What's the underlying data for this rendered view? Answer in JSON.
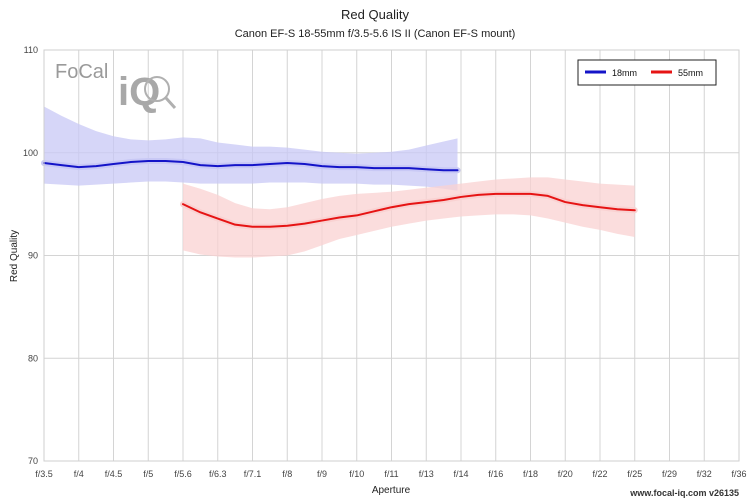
{
  "chart_data": {
    "type": "line",
    "title": "Red Quality",
    "subtitle": "Canon EF-S 18-55mm f/3.5-5.6 IS II (Canon EF-S mount)",
    "xlabel": "Aperture",
    "ylabel": "Red Quality",
    "categories": [
      "f/3.5",
      "f/4",
      "f/4.5",
      "f/5",
      "f/5.6",
      "f/6.3",
      "f/7.1",
      "f/8",
      "f/9",
      "f/10",
      "f/11",
      "f/13",
      "f/14",
      "f/16",
      "f/18",
      "f/20",
      "f/22",
      "f/25",
      "f/29",
      "f/32",
      "f/36"
    ],
    "ylim": [
      70,
      110
    ],
    "yticks": [
      70,
      80,
      90,
      100,
      110
    ],
    "grid": true,
    "legend_position": "top-right",
    "series": [
      {
        "name": "18mm",
        "color": "#1414c8",
        "band_color": "#c8c8f5",
        "points": [
          [
            0,
            99.0
          ],
          [
            0.5,
            98.8
          ],
          [
            1,
            98.6
          ],
          [
            1.5,
            98.7
          ],
          [
            2,
            98.9
          ],
          [
            2.5,
            99.1
          ],
          [
            3,
            99.2
          ],
          [
            3.5,
            99.2
          ],
          [
            4,
            99.1
          ],
          [
            4.5,
            98.8
          ],
          [
            5,
            98.7
          ],
          [
            5.5,
            98.8
          ],
          [
            6,
            98.8
          ],
          [
            6.5,
            98.9
          ],
          [
            7,
            99.0
          ],
          [
            7.5,
            98.9
          ],
          [
            8,
            98.7
          ],
          [
            8.5,
            98.6
          ],
          [
            9,
            98.6
          ],
          [
            9.5,
            98.5
          ],
          [
            10,
            98.5
          ],
          [
            10.5,
            98.5
          ],
          [
            11,
            98.4
          ],
          [
            11.5,
            98.3
          ],
          [
            11.9,
            98.3
          ]
        ],
        "band_upper": [
          [
            0,
            104.5
          ],
          [
            0.5,
            103.6
          ],
          [
            1,
            102.8
          ],
          [
            1.5,
            102.1
          ],
          [
            2,
            101.6
          ],
          [
            2.5,
            101.3
          ],
          [
            3,
            101.2
          ],
          [
            3.5,
            101.3
          ],
          [
            4,
            101.5
          ],
          [
            4.5,
            101.4
          ],
          [
            5,
            101.0
          ],
          [
            5.5,
            100.8
          ],
          [
            6,
            100.6
          ],
          [
            6.5,
            100.6
          ],
          [
            7,
            100.5
          ],
          [
            7.5,
            100.3
          ],
          [
            8,
            100.1
          ],
          [
            8.5,
            100.0
          ],
          [
            9,
            99.9
          ],
          [
            9.5,
            100.0
          ],
          [
            10,
            100.1
          ],
          [
            10.5,
            100.3
          ],
          [
            11,
            100.7
          ],
          [
            11.5,
            101.1
          ],
          [
            11.9,
            101.4
          ]
        ],
        "band_lower": [
          [
            0,
            97.0
          ],
          [
            0.5,
            96.9
          ],
          [
            1,
            96.8
          ],
          [
            1.5,
            96.9
          ],
          [
            2,
            97.0
          ],
          [
            2.5,
            97.1
          ],
          [
            3,
            97.2
          ],
          [
            3.5,
            97.2
          ],
          [
            4,
            97.1
          ],
          [
            4.5,
            97.0
          ],
          [
            5,
            97.0
          ],
          [
            5.5,
            97.0
          ],
          [
            6,
            97.0
          ],
          [
            6.5,
            97.1
          ],
          [
            7,
            97.1
          ],
          [
            7.5,
            97.1
          ],
          [
            8,
            97.0
          ],
          [
            8.5,
            97.0
          ],
          [
            9,
            97.0
          ],
          [
            9.5,
            96.9
          ],
          [
            10,
            96.9
          ],
          [
            10.5,
            96.8
          ],
          [
            11,
            96.7
          ],
          [
            11.5,
            96.5
          ],
          [
            11.9,
            96.3
          ]
        ]
      },
      {
        "name": "55mm",
        "color": "#e61414",
        "band_color": "#f9d2d2",
        "points": [
          [
            4,
            95.0
          ],
          [
            4.5,
            94.2
          ],
          [
            5,
            93.6
          ],
          [
            5.5,
            93.0
          ],
          [
            6,
            92.8
          ],
          [
            6.5,
            92.8
          ],
          [
            7,
            92.9
          ],
          [
            7.5,
            93.1
          ],
          [
            8,
            93.4
          ],
          [
            8.5,
            93.7
          ],
          [
            9,
            93.9
          ],
          [
            9.5,
            94.3
          ],
          [
            10,
            94.7
          ],
          [
            10.5,
            95.0
          ],
          [
            11,
            95.2
          ],
          [
            11.5,
            95.4
          ],
          [
            12,
            95.7
          ],
          [
            12.5,
            95.9
          ],
          [
            13,
            96.0
          ],
          [
            13.5,
            96.0
          ],
          [
            14,
            96.0
          ],
          [
            14.5,
            95.8
          ],
          [
            15,
            95.2
          ],
          [
            15.5,
            94.9
          ],
          [
            16,
            94.7
          ],
          [
            16.5,
            94.5
          ],
          [
            17,
            94.4
          ]
        ],
        "band_upper": [
          [
            4,
            97.0
          ],
          [
            4.5,
            96.5
          ],
          [
            5,
            95.9
          ],
          [
            5.5,
            95.1
          ],
          [
            6,
            94.6
          ],
          [
            6.5,
            94.5
          ],
          [
            7,
            94.7
          ],
          [
            7.5,
            95.1
          ],
          [
            8,
            95.5
          ],
          [
            8.5,
            95.8
          ],
          [
            9,
            96.0
          ],
          [
            9.5,
            96.1
          ],
          [
            10,
            96.2
          ],
          [
            10.5,
            96.4
          ],
          [
            11,
            96.6
          ],
          [
            11.5,
            96.8
          ],
          [
            12,
            97.0
          ],
          [
            12.5,
            97.2
          ],
          [
            13,
            97.4
          ],
          [
            13.5,
            97.5
          ],
          [
            14,
            97.6
          ],
          [
            14.5,
            97.6
          ],
          [
            15,
            97.4
          ],
          [
            15.5,
            97.2
          ],
          [
            16,
            97.0
          ],
          [
            16.5,
            96.9
          ],
          [
            17,
            96.8
          ]
        ],
        "band_lower": [
          [
            4,
            90.5
          ],
          [
            4.5,
            90.1
          ],
          [
            5,
            89.9
          ],
          [
            5.5,
            89.8
          ],
          [
            6,
            89.8
          ],
          [
            6.5,
            89.9
          ],
          [
            7,
            90.0
          ],
          [
            7.5,
            90.4
          ],
          [
            8,
            91.0
          ],
          [
            8.5,
            91.6
          ],
          [
            9,
            92.0
          ],
          [
            9.5,
            92.4
          ],
          [
            10,
            92.8
          ],
          [
            10.5,
            93.1
          ],
          [
            11,
            93.4
          ],
          [
            11.5,
            93.6
          ],
          [
            12,
            93.8
          ],
          [
            12.5,
            93.9
          ],
          [
            13,
            94.0
          ],
          [
            13.5,
            94.0
          ],
          [
            14,
            93.9
          ],
          [
            14.5,
            93.6
          ],
          [
            15,
            93.2
          ],
          [
            15.5,
            92.8
          ],
          [
            16,
            92.5
          ],
          [
            16.5,
            92.1
          ],
          [
            17,
            91.8
          ]
        ]
      }
    ]
  },
  "branding": {
    "logo_text": "FoCal",
    "logo_iq": "iQ",
    "footer": "www.focal-iq.com  v26135"
  }
}
